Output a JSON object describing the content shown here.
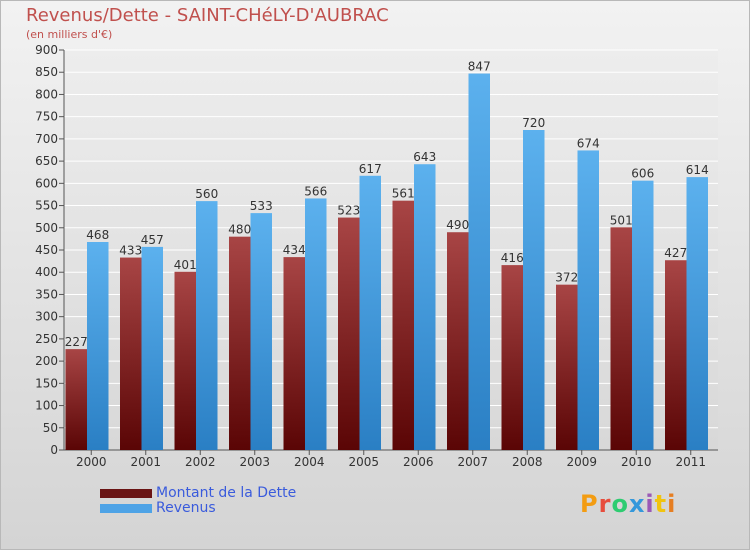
{
  "chart_data": {
    "type": "bar",
    "title": "Revenus/Dette - SAINT-CHéLY-D'AUBRAC",
    "subtitle": "(en milliers d'€)",
    "categories": [
      "2000",
      "2001",
      "2002",
      "2003",
      "2004",
      "2005",
      "2006",
      "2007",
      "2008",
      "2009",
      "2010",
      "2011"
    ],
    "series": [
      {
        "name": "Montant de la Dette",
        "color": "#7b1c1c",
        "values": [
          227,
          433,
          401,
          480,
          434,
          523,
          561,
          490,
          416,
          372,
          501,
          427
        ]
      },
      {
        "name": "Revenus",
        "color": "#4ea3e6",
        "values": [
          468,
          457,
          560,
          533,
          566,
          617,
          643,
          847,
          720,
          674,
          606,
          614
        ]
      }
    ],
    "ylim": [
      0,
      900
    ],
    "yticks": [
      0,
      50,
      100,
      150,
      200,
      250,
      300,
      350,
      400,
      450,
      500,
      550,
      600,
      650,
      700,
      750,
      800,
      850,
      900
    ],
    "grid": true,
    "legend": "bottom-left"
  },
  "logo": {
    "text": "Proxiti",
    "colors": [
      "#f39c12",
      "#e74c3c",
      "#2ecc71",
      "#3498db",
      "#9b59b6",
      "#f1c40f",
      "#e67e22"
    ]
  }
}
